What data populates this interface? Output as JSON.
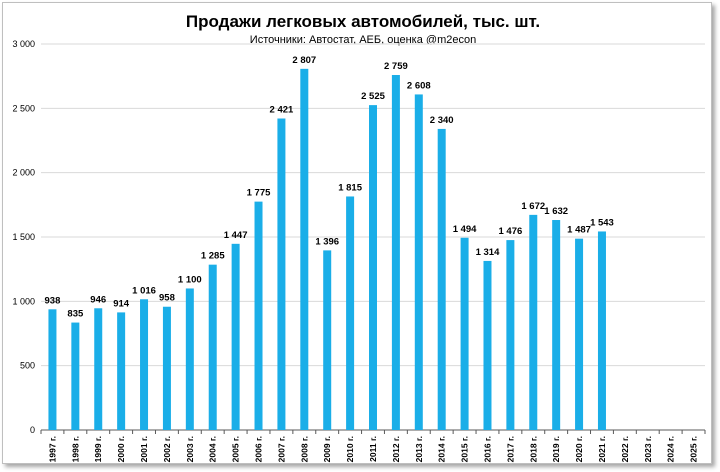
{
  "chart_data": {
    "type": "bar",
    "title": "Продажи легковых автомобилей, тыс. шт.",
    "subtitle": "Источники: Автостат, АЕБ, оценка @m2econ",
    "categories": [
      "1997 г.",
      "1998 г.",
      "1999 г.",
      "2000 г.",
      "2001 г.",
      "2002 г.",
      "2003 г.",
      "2004 г.",
      "2005 г.",
      "2006 г.",
      "2007 г.",
      "2008 г.",
      "2009 г.",
      "2010 г.",
      "2011 г.",
      "2012 г.",
      "2013 г.",
      "2014 г.",
      "2015 г.",
      "2016 г.",
      "2017 г.",
      "2018 г.",
      "2019 г.",
      "2020 г.",
      "2021 г.",
      "2022 г.",
      "2023 г.",
      "2024 г.",
      "2025 г."
    ],
    "values": [
      938,
      835,
      946,
      914,
      1016,
      958,
      1100,
      1285,
      1447,
      1775,
      2421,
      2807,
      1396,
      1815,
      2525,
      2759,
      2608,
      2340,
      1494,
      1314,
      1476,
      1672,
      1632,
      1487,
      1543,
      null,
      null,
      null,
      null
    ],
    "value_labels": [
      "938",
      "835",
      "946",
      "914",
      "1 016",
      "958",
      "1 100",
      "1 285",
      "1 447",
      "1 775",
      "2 421",
      "2 807",
      "1 396",
      "1 815",
      "2 525",
      "2 759",
      "2 608",
      "2 340",
      "1 494",
      "1 314",
      "1 476",
      "1 672",
      "1 632",
      "1 487",
      "1 543",
      "",
      "",
      "",
      ""
    ],
    "yticks": [
      0,
      500,
      1000,
      1500,
      2000,
      2500,
      3000
    ],
    "ytick_labels": [
      "0",
      "500",
      "1 000",
      "1 500",
      "2 000",
      "2 500",
      "3 000"
    ],
    "ylim": [
      0,
      3000
    ],
    "grid": true,
    "legend": "none",
    "colors": {
      "bar": "#1aaee8",
      "grid": "#d9d9d9",
      "axis": "#595959"
    }
  }
}
